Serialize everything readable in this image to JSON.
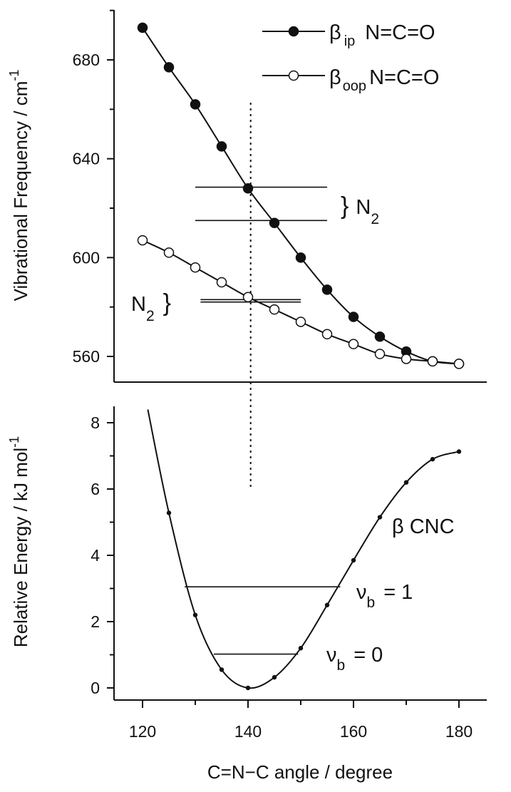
{
  "chart_data": [
    {
      "type": "line",
      "ylabel": "Vibrational Frequency / cm",
      "ylabel_superscript": "-1",
      "xlim": [
        115,
        185
      ],
      "ylim": [
        555,
        700
      ],
      "yticks": [
        560,
        600,
        640,
        680
      ],
      "ytick_labels": [
        "560",
        "600",
        "640",
        "680"
      ],
      "grid": false,
      "legend_placement": "top-right",
      "series": [
        {
          "name": "β ip N=C=O",
          "name_parts": {
            "symbol": "β",
            "subscript": "ip",
            "text": "N=C=O"
          },
          "marker": "filled-circle",
          "x": [
            120,
            125,
            130,
            135,
            140,
            145,
            150,
            155,
            160,
            165,
            170,
            175,
            180
          ],
          "y": [
            693,
            677,
            662,
            645,
            628,
            614,
            600,
            587,
            576,
            568,
            562,
            558,
            557
          ]
        },
        {
          "name": "β oop N=C=O",
          "name_parts": {
            "symbol": "β",
            "subscript": "oop",
            "text": "N=C=O"
          },
          "marker": "open-circle",
          "x": [
            120,
            125,
            130,
            135,
            140,
            145,
            150,
            155,
            160,
            165,
            170,
            175,
            180
          ],
          "y": [
            607,
            602,
            596,
            590,
            584,
            579,
            574,
            569,
            565,
            561,
            559,
            558,
            557
          ]
        }
      ],
      "hlines": [
        {
          "group": "upper",
          "y": 628.5,
          "x": [
            130,
            155
          ]
        },
        {
          "group": "upper",
          "y": 615,
          "x": [
            130,
            155
          ]
        },
        {
          "group": "lower",
          "y": 583,
          "x": [
            131,
            150
          ]
        },
        {
          "group": "lower",
          "y": 582,
          "x": [
            131,
            150
          ]
        }
      ],
      "annotations": {
        "upper_n2": {
          "bracket": "}",
          "text": "N",
          "subscript": "2"
        },
        "lower_n2": {
          "text": "N",
          "subscript": "2",
          "bracket": "}"
        }
      },
      "vline_x": 140.5
    },
    {
      "type": "line",
      "ylabel": "Relative Energy / kJ mol",
      "ylabel_superscript": "-1",
      "xlabel": "C=N−C angle  /  degree",
      "xlim": [
        115,
        185
      ],
      "ylim": [
        -0.2,
        8.5
      ],
      "yticks": [
        0,
        2,
        4,
        6,
        8
      ],
      "ytick_labels": [
        "0",
        "2",
        "4",
        "6",
        "8"
      ],
      "xticks": [
        120,
        140,
        160,
        180
      ],
      "xtick_labels": [
        "120",
        "140",
        "160",
        "180"
      ],
      "grid": false,
      "series": [
        {
          "name": "β CNC",
          "marker": "small-dot",
          "x": [
            125,
            130,
            135,
            140,
            145,
            150,
            155,
            160,
            165,
            170,
            175,
            180
          ],
          "y": [
            5.28,
            2.2,
            0.55,
            0.0,
            0.32,
            1.2,
            2.5,
            3.85,
            5.15,
            6.2,
            6.9,
            7.13
          ]
        }
      ],
      "curve_start": {
        "x": 121,
        "y": 8.4
      },
      "levels": [
        {
          "name": "v_b = 1",
          "symbol": "ν",
          "subscript": "b",
          "text": "= 1",
          "energy": 3.05,
          "x": [
            128,
            157.5
          ]
        },
        {
          "name": "v_b = 0",
          "symbol": "ν",
          "subscript": "b",
          "text": "= 0",
          "energy": 1.02,
          "x": [
            133.5,
            149.5
          ]
        }
      ],
      "vline": {
        "x": 140.5,
        "y_top": 6.0
      }
    }
  ]
}
